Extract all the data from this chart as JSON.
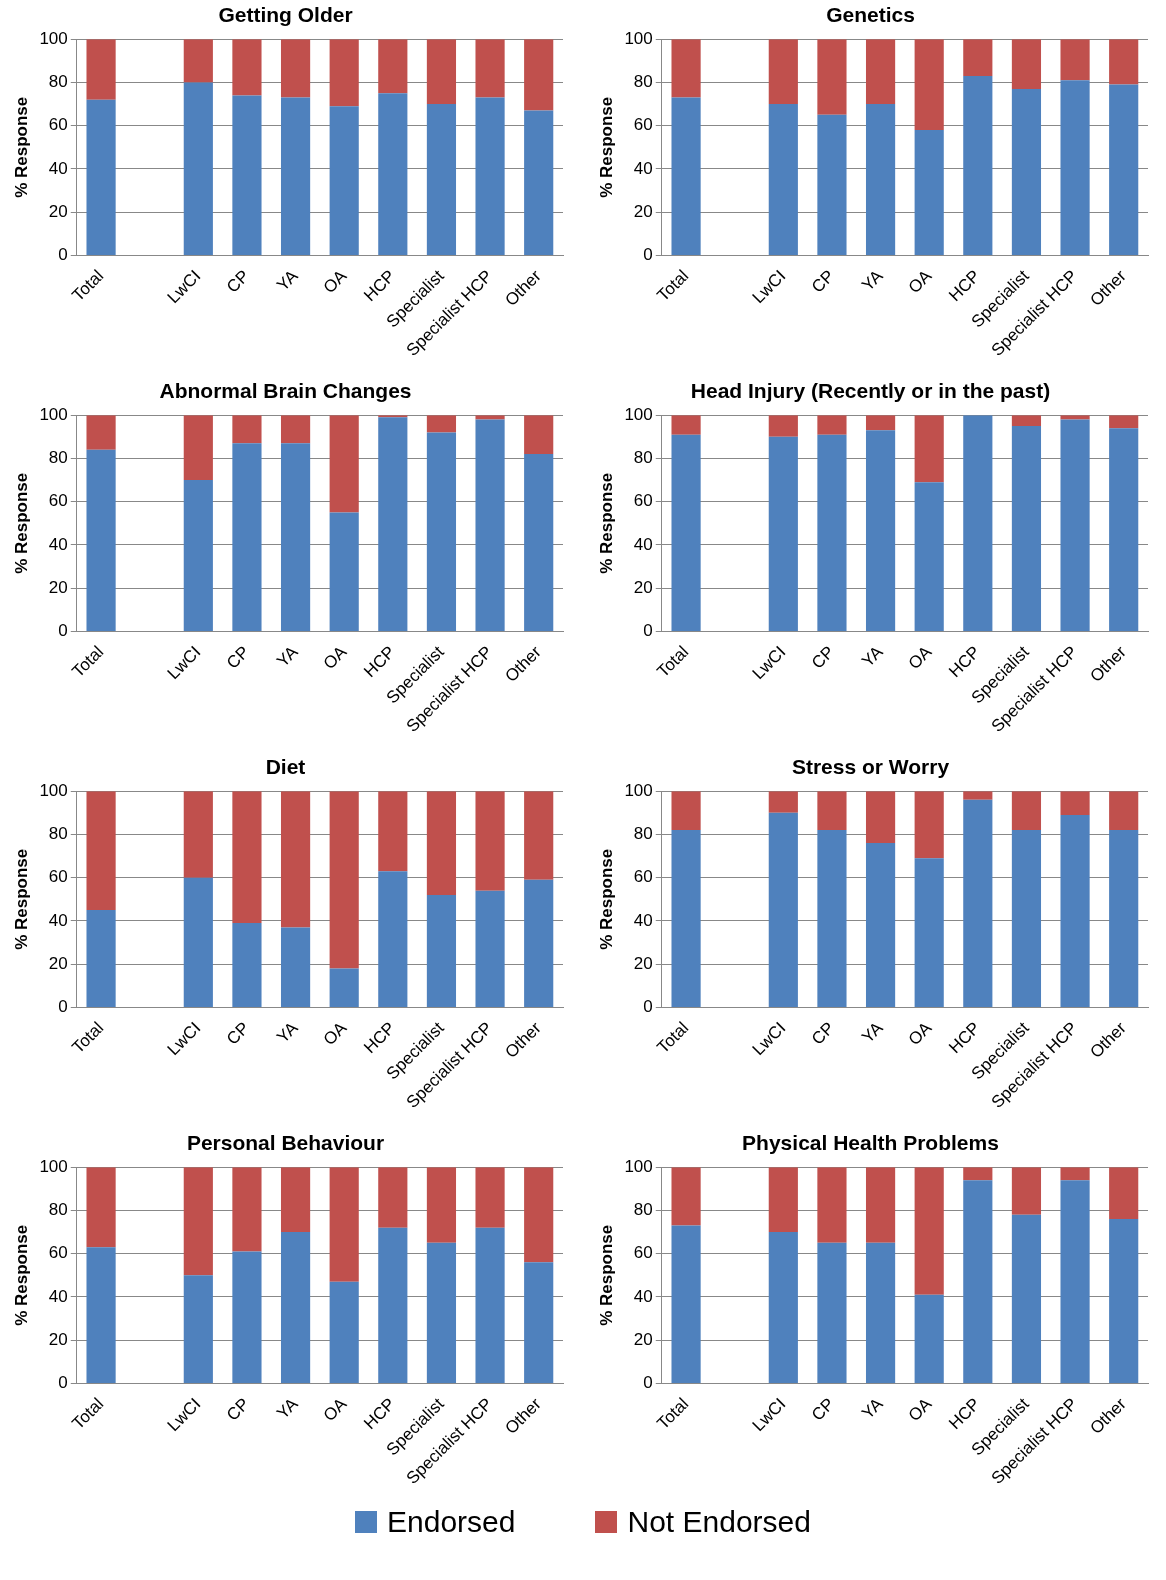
{
  "chart_data": [
    {
      "type": "bar",
      "title": "Getting Older",
      "ylabel": "% Response",
      "stacked": true,
      "grid": "y",
      "ylim": [
        0,
        100
      ],
      "yticks": [
        0,
        20,
        40,
        60,
        80,
        100
      ],
      "categories": [
        "Total",
        null,
        "LwCI",
        "CP",
        "YA",
        "OA",
        "HCP",
        "Specialist",
        "Specialist HCP",
        "Other"
      ],
      "series": [
        {
          "color": "#4f81bd",
          "values": [
            72,
            null,
            80,
            74,
            73,
            69,
            75,
            70,
            73,
            67
          ]
        },
        {
          "color": "#c0504d",
          "values": [
            28,
            null,
            20,
            26,
            27,
            31,
            25,
            30,
            27,
            33
          ]
        }
      ]
    },
    {
      "type": "bar",
      "title": "Genetics",
      "ylabel": "% Response",
      "stacked": true,
      "grid": "y",
      "ylim": [
        0,
        100
      ],
      "yticks": [
        0,
        20,
        40,
        60,
        80,
        100
      ],
      "categories": [
        "Total",
        null,
        "LwCI",
        "CP",
        "YA",
        "OA",
        "HCP",
        "Specialist",
        "Specialist HCP",
        "Other"
      ],
      "series": [
        {
          "color": "#4f81bd",
          "values": [
            73,
            null,
            70,
            65,
            70,
            58,
            83,
            77,
            81,
            79
          ]
        },
        {
          "color": "#c0504d",
          "values": [
            27,
            null,
            30,
            35,
            30,
            42,
            17,
            23,
            19,
            21
          ]
        }
      ]
    },
    {
      "type": "bar",
      "title": "Abnormal Brain Changes",
      "ylabel": "% Response",
      "stacked": true,
      "grid": "y",
      "ylim": [
        0,
        100
      ],
      "yticks": [
        0,
        20,
        40,
        60,
        80,
        100
      ],
      "categories": [
        "Total",
        null,
        "LwCI",
        "CP",
        "YA",
        "OA",
        "HCP",
        "Specialist",
        "Specialist HCP",
        "Other"
      ],
      "series": [
        {
          "color": "#4f81bd",
          "values": [
            84,
            null,
            70,
            87,
            87,
            55,
            99,
            92,
            98,
            82
          ]
        },
        {
          "color": "#c0504d",
          "values": [
            16,
            null,
            30,
            13,
            13,
            45,
            1,
            8,
            2,
            18
          ]
        }
      ]
    },
    {
      "type": "bar",
      "title": "Head Injury (Recently or in the past)",
      "ylabel": "% Response",
      "stacked": true,
      "grid": "y",
      "ylim": [
        0,
        100
      ],
      "yticks": [
        0,
        20,
        40,
        60,
        80,
        100
      ],
      "categories": [
        "Total",
        null,
        "LwCI",
        "CP",
        "YA",
        "OA",
        "HCP",
        "Specialist",
        "Specialist HCP",
        "Other"
      ],
      "series": [
        {
          "color": "#4f81bd",
          "values": [
            91,
            null,
            90,
            91,
            93,
            69,
            100,
            95,
            98,
            94
          ]
        },
        {
          "color": "#c0504d",
          "values": [
            9,
            null,
            10,
            9,
            7,
            31,
            0,
            5,
            2,
            6
          ]
        }
      ]
    },
    {
      "type": "bar",
      "title": "Diet",
      "ylabel": "% Response",
      "stacked": true,
      "grid": "y",
      "ylim": [
        0,
        100
      ],
      "yticks": [
        0,
        20,
        40,
        60,
        80,
        100
      ],
      "categories": [
        "Total",
        null,
        "LwCI",
        "CP",
        "YA",
        "OA",
        "HCP",
        "Specialist",
        "Specialist HCP",
        "Other"
      ],
      "series": [
        {
          "color": "#4f81bd",
          "values": [
            45,
            null,
            60,
            39,
            37,
            18,
            63,
            52,
            54,
            59
          ]
        },
        {
          "color": "#c0504d",
          "values": [
            55,
            null,
            40,
            61,
            63,
            82,
            37,
            48,
            46,
            41
          ]
        }
      ]
    },
    {
      "type": "bar",
      "title": "Stress or Worry",
      "ylabel": "% Response",
      "stacked": true,
      "grid": "y",
      "ylim": [
        0,
        100
      ],
      "yticks": [
        0,
        20,
        40,
        60,
        80,
        100
      ],
      "categories": [
        "Total",
        null,
        "LwCI",
        "CP",
        "YA",
        "OA",
        "HCP",
        "Specialist",
        "Specialist HCP",
        "Other"
      ],
      "series": [
        {
          "color": "#4f81bd",
          "values": [
            82,
            null,
            90,
            82,
            76,
            69,
            96,
            82,
            89,
            82
          ]
        },
        {
          "color": "#c0504d",
          "values": [
            18,
            null,
            10,
            18,
            24,
            31,
            4,
            18,
            11,
            18
          ]
        }
      ]
    },
    {
      "type": "bar",
      "title": "Personal Behaviour",
      "ylabel": "% Response",
      "stacked": true,
      "grid": "y",
      "ylim": [
        0,
        100
      ],
      "yticks": [
        0,
        20,
        40,
        60,
        80,
        100
      ],
      "categories": [
        "Total",
        null,
        "LwCI",
        "CP",
        "YA",
        "OA",
        "HCP",
        "Specialist",
        "Specialist HCP",
        "Other"
      ],
      "series": [
        {
          "color": "#4f81bd",
          "values": [
            63,
            null,
            50,
            61,
            70,
            47,
            72,
            65,
            72,
            56
          ]
        },
        {
          "color": "#c0504d",
          "values": [
            37,
            null,
            50,
            39,
            30,
            53,
            28,
            35,
            28,
            44
          ]
        }
      ]
    },
    {
      "type": "bar",
      "title": "Physical Health Problems",
      "ylabel": "% Response",
      "stacked": true,
      "grid": "y",
      "legend": "bottom",
      "ylim": [
        0,
        100
      ],
      "yticks": [
        0,
        20,
        40,
        60,
        80,
        100
      ],
      "categories": [
        "Total",
        null,
        "LwCI",
        "CP",
        "YA",
        "OA",
        "HCP",
        "Specialist",
        "Specialist HCP",
        "Other"
      ],
      "series": [
        {
          "name": "Endorsed",
          "color": "#4f81bd",
          "values": [
            73,
            null,
            70,
            65,
            65,
            41,
            94,
            78,
            94,
            76
          ]
        },
        {
          "name": "Not Endorsed",
          "color": "#c0504d",
          "values": [
            27,
            null,
            30,
            35,
            35,
            59,
            6,
            22,
            6,
            24
          ]
        }
      ]
    }
  ]
}
